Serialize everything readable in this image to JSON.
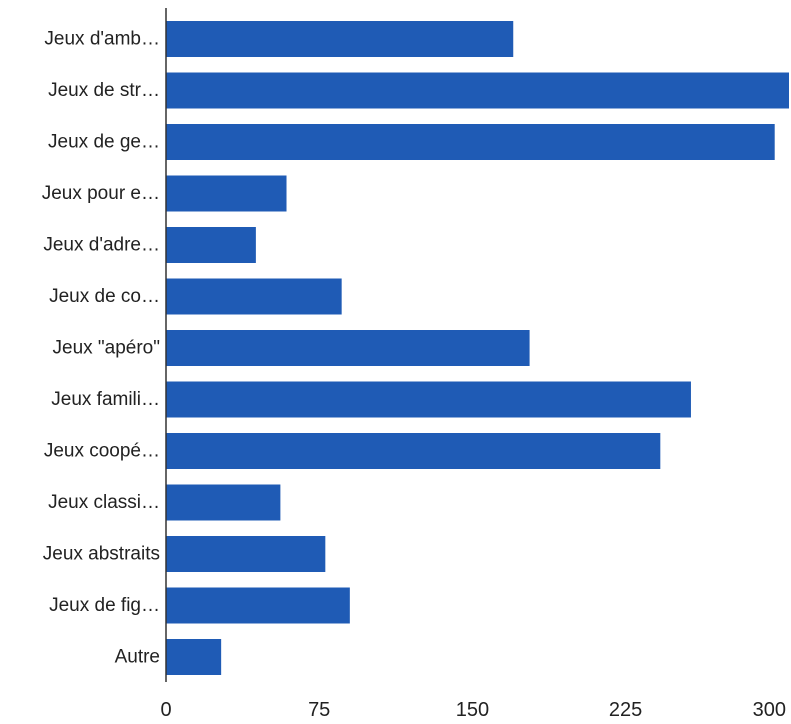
{
  "chart_data": {
    "type": "bar",
    "orientation": "horizontal",
    "categories": [
      "Jeux d'amb…",
      "Jeux de str…",
      "Jeux de ge…",
      "Jeux pour e…",
      "Jeux d'adre…",
      "Jeux de co…",
      "Jeux \"apéro\"",
      "Jeux famili…",
      "Jeux coopé…",
      "Jeux classi…",
      "Jeux abstraits",
      "Jeux de fig…",
      "Autre"
    ],
    "values": [
      170,
      305,
      298,
      59,
      44,
      86,
      178,
      257,
      242,
      56,
      78,
      90,
      27
    ],
    "xlim": [
      0,
      305
    ],
    "xticks": [
      0,
      75,
      150,
      225,
      300
    ],
    "xtick_labels": [
      "0",
      "75",
      "150",
      "225",
      "300"
    ],
    "bar_color": "#1f5bb5",
    "axis_color": "#333333",
    "grid": false,
    "legend": "none",
    "title": "",
    "xlabel": "",
    "ylabel": ""
  }
}
